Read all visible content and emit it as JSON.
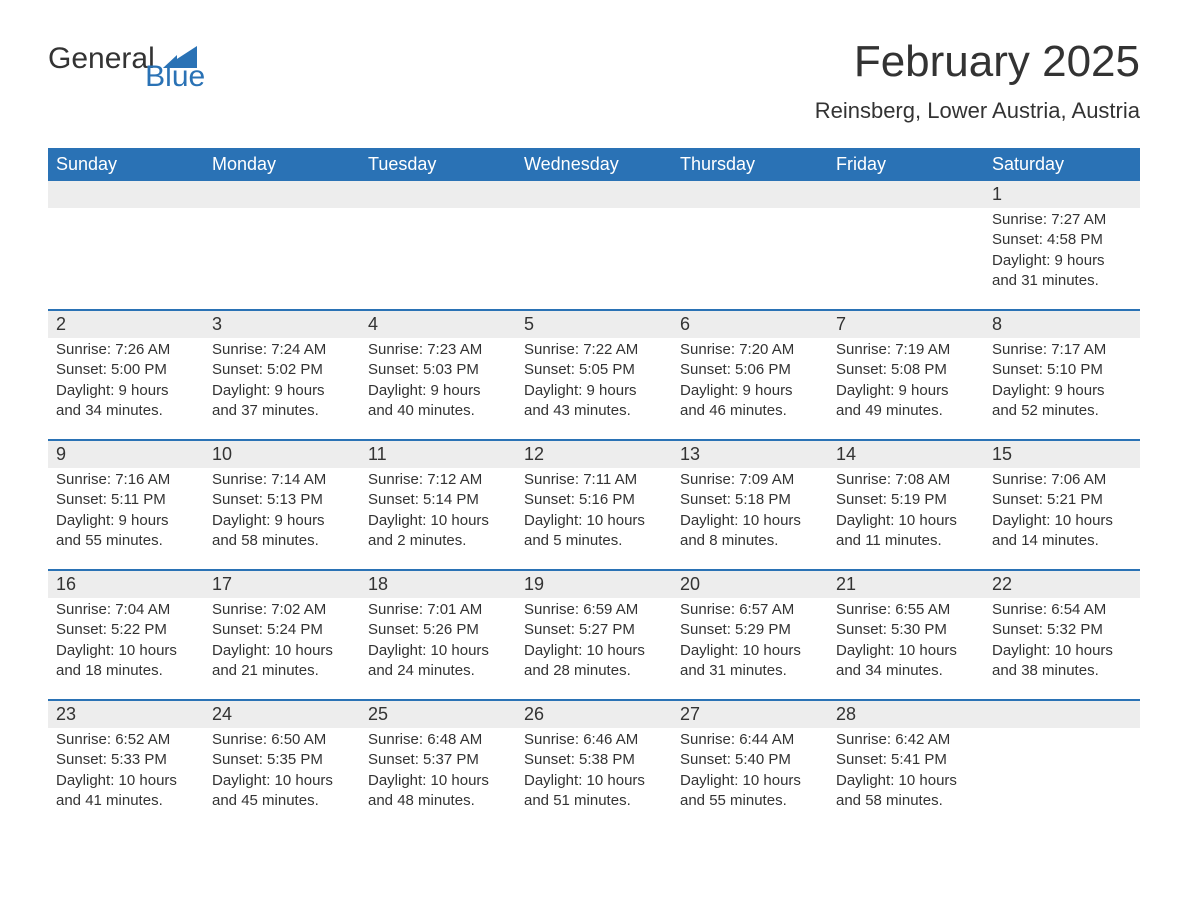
{
  "brand": {
    "word1": "General",
    "word2": "Blue"
  },
  "title": "February 2025",
  "location": "Reinsberg, Lower Austria, Austria",
  "colors": {
    "header_bg": "#2a72b5",
    "header_text": "#ffffff",
    "daynum_bg": "#ededed",
    "week_border": "#2a72b5",
    "body_text": "#333333",
    "brand_blue": "#2a72b5",
    "page_bg": "#ffffff"
  },
  "typography": {
    "title_fontsize": 44,
    "location_fontsize": 22,
    "weekday_fontsize": 18,
    "daynum_fontsize": 18,
    "detail_fontsize": 15,
    "logo_fontsize": 30
  },
  "weekdays": [
    "Sunday",
    "Monday",
    "Tuesday",
    "Wednesday",
    "Thursday",
    "Friday",
    "Saturday"
  ],
  "weeks": [
    {
      "days": [
        {
          "num": "",
          "sunrise": "",
          "sunset": "",
          "daylight": ""
        },
        {
          "num": "",
          "sunrise": "",
          "sunset": "",
          "daylight": ""
        },
        {
          "num": "",
          "sunrise": "",
          "sunset": "",
          "daylight": ""
        },
        {
          "num": "",
          "sunrise": "",
          "sunset": "",
          "daylight": ""
        },
        {
          "num": "",
          "sunrise": "",
          "sunset": "",
          "daylight": ""
        },
        {
          "num": "",
          "sunrise": "",
          "sunset": "",
          "daylight": ""
        },
        {
          "num": "1",
          "sunrise": "Sunrise: 7:27 AM",
          "sunset": "Sunset: 4:58 PM",
          "daylight": "Daylight: 9 hours and 31 minutes."
        }
      ]
    },
    {
      "days": [
        {
          "num": "2",
          "sunrise": "Sunrise: 7:26 AM",
          "sunset": "Sunset: 5:00 PM",
          "daylight": "Daylight: 9 hours and 34 minutes."
        },
        {
          "num": "3",
          "sunrise": "Sunrise: 7:24 AM",
          "sunset": "Sunset: 5:02 PM",
          "daylight": "Daylight: 9 hours and 37 minutes."
        },
        {
          "num": "4",
          "sunrise": "Sunrise: 7:23 AM",
          "sunset": "Sunset: 5:03 PM",
          "daylight": "Daylight: 9 hours and 40 minutes."
        },
        {
          "num": "5",
          "sunrise": "Sunrise: 7:22 AM",
          "sunset": "Sunset: 5:05 PM",
          "daylight": "Daylight: 9 hours and 43 minutes."
        },
        {
          "num": "6",
          "sunrise": "Sunrise: 7:20 AM",
          "sunset": "Sunset: 5:06 PM",
          "daylight": "Daylight: 9 hours and 46 minutes."
        },
        {
          "num": "7",
          "sunrise": "Sunrise: 7:19 AM",
          "sunset": "Sunset: 5:08 PM",
          "daylight": "Daylight: 9 hours and 49 minutes."
        },
        {
          "num": "8",
          "sunrise": "Sunrise: 7:17 AM",
          "sunset": "Sunset: 5:10 PM",
          "daylight": "Daylight: 9 hours and 52 minutes."
        }
      ]
    },
    {
      "days": [
        {
          "num": "9",
          "sunrise": "Sunrise: 7:16 AM",
          "sunset": "Sunset: 5:11 PM",
          "daylight": "Daylight: 9 hours and 55 minutes."
        },
        {
          "num": "10",
          "sunrise": "Sunrise: 7:14 AM",
          "sunset": "Sunset: 5:13 PM",
          "daylight": "Daylight: 9 hours and 58 minutes."
        },
        {
          "num": "11",
          "sunrise": "Sunrise: 7:12 AM",
          "sunset": "Sunset: 5:14 PM",
          "daylight": "Daylight: 10 hours and 2 minutes."
        },
        {
          "num": "12",
          "sunrise": "Sunrise: 7:11 AM",
          "sunset": "Sunset: 5:16 PM",
          "daylight": "Daylight: 10 hours and 5 minutes."
        },
        {
          "num": "13",
          "sunrise": "Sunrise: 7:09 AM",
          "sunset": "Sunset: 5:18 PM",
          "daylight": "Daylight: 10 hours and 8 minutes."
        },
        {
          "num": "14",
          "sunrise": "Sunrise: 7:08 AM",
          "sunset": "Sunset: 5:19 PM",
          "daylight": "Daylight: 10 hours and 11 minutes."
        },
        {
          "num": "15",
          "sunrise": "Sunrise: 7:06 AM",
          "sunset": "Sunset: 5:21 PM",
          "daylight": "Daylight: 10 hours and 14 minutes."
        }
      ]
    },
    {
      "days": [
        {
          "num": "16",
          "sunrise": "Sunrise: 7:04 AM",
          "sunset": "Sunset: 5:22 PM",
          "daylight": "Daylight: 10 hours and 18 minutes."
        },
        {
          "num": "17",
          "sunrise": "Sunrise: 7:02 AM",
          "sunset": "Sunset: 5:24 PM",
          "daylight": "Daylight: 10 hours and 21 minutes."
        },
        {
          "num": "18",
          "sunrise": "Sunrise: 7:01 AM",
          "sunset": "Sunset: 5:26 PM",
          "daylight": "Daylight: 10 hours and 24 minutes."
        },
        {
          "num": "19",
          "sunrise": "Sunrise: 6:59 AM",
          "sunset": "Sunset: 5:27 PM",
          "daylight": "Daylight: 10 hours and 28 minutes."
        },
        {
          "num": "20",
          "sunrise": "Sunrise: 6:57 AM",
          "sunset": "Sunset: 5:29 PM",
          "daylight": "Daylight: 10 hours and 31 minutes."
        },
        {
          "num": "21",
          "sunrise": "Sunrise: 6:55 AM",
          "sunset": "Sunset: 5:30 PM",
          "daylight": "Daylight: 10 hours and 34 minutes."
        },
        {
          "num": "22",
          "sunrise": "Sunrise: 6:54 AM",
          "sunset": "Sunset: 5:32 PM",
          "daylight": "Daylight: 10 hours and 38 minutes."
        }
      ]
    },
    {
      "days": [
        {
          "num": "23",
          "sunrise": "Sunrise: 6:52 AM",
          "sunset": "Sunset: 5:33 PM",
          "daylight": "Daylight: 10 hours and 41 minutes."
        },
        {
          "num": "24",
          "sunrise": "Sunrise: 6:50 AM",
          "sunset": "Sunset: 5:35 PM",
          "daylight": "Daylight: 10 hours and 45 minutes."
        },
        {
          "num": "25",
          "sunrise": "Sunrise: 6:48 AM",
          "sunset": "Sunset: 5:37 PM",
          "daylight": "Daylight: 10 hours and 48 minutes."
        },
        {
          "num": "26",
          "sunrise": "Sunrise: 6:46 AM",
          "sunset": "Sunset: 5:38 PM",
          "daylight": "Daylight: 10 hours and 51 minutes."
        },
        {
          "num": "27",
          "sunrise": "Sunrise: 6:44 AM",
          "sunset": "Sunset: 5:40 PM",
          "daylight": "Daylight: 10 hours and 55 minutes."
        },
        {
          "num": "28",
          "sunrise": "Sunrise: 6:42 AM",
          "sunset": "Sunset: 5:41 PM",
          "daylight": "Daylight: 10 hours and 58 minutes."
        },
        {
          "num": "",
          "sunrise": "",
          "sunset": "",
          "daylight": ""
        }
      ]
    }
  ]
}
